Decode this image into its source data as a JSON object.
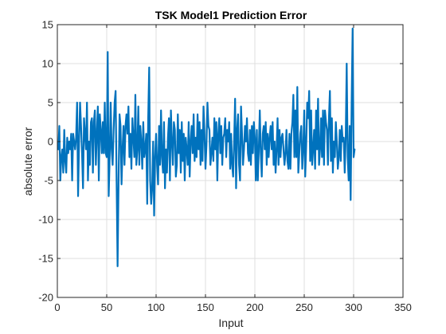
{
  "chart_data": {
    "type": "line",
    "title": "TSK Model1 Prediction Error",
    "xlabel": "Input",
    "ylabel": "absolute error",
    "xlim": [
      0,
      350
    ],
    "ylim": [
      -20,
      15
    ],
    "xticks": [
      0,
      50,
      100,
      150,
      200,
      250,
      300,
      350
    ],
    "yticks": [
      -20,
      -15,
      -10,
      -5,
      0,
      5,
      10,
      15
    ],
    "xtick_labels": [
      "0",
      "50",
      "100",
      "150",
      "200",
      "250",
      "300",
      "350"
    ],
    "ytick_labels": [
      "-20",
      "-15",
      "-10",
      "-5",
      "0",
      "5",
      "10",
      "15"
    ],
    "grid": true,
    "box": true,
    "line_color": "#0072BD",
    "series": [
      {
        "values": [
          -1.0,
          2.0,
          -5.0,
          -2.0,
          -1.0,
          -4.0,
          1.5,
          -2.5,
          -4.0,
          0.5,
          -1.5,
          0.0,
          -1.0,
          1.0,
          -5.0,
          1.0,
          0.0,
          -1.0,
          0.5,
          5.0,
          -7.0,
          0.0,
          5.0,
          2.0,
          -1.5,
          -6.0,
          3.0,
          1.0,
          -1.0,
          5.0,
          -5.0,
          0.0,
          -3.0,
          2.5,
          3.0,
          -4.0,
          2.5,
          4.0,
          -3.0,
          1.0,
          4.5,
          -5.0,
          3.5,
          1.5,
          -1.5,
          2.5,
          -1.5,
          5.0,
          -1.5,
          -2.0,
          11.5,
          -7.0,
          -2.0,
          5.0,
          -1.0,
          -3.0,
          1.5,
          5.0,
          6.5,
          -5.0,
          -16.0,
          -5.0,
          3.5,
          2.0,
          -5.5,
          -1.0,
          2.0,
          -3.0,
          2.0,
          3.5,
          1.0,
          4.5,
          -2.0,
          1.0,
          -3.5,
          3.0,
          0.5,
          -2.0,
          6.0,
          -3.0,
          -1.0,
          4.5,
          -3.0,
          2.0,
          0.0,
          -3.5,
          2.5,
          -2.0,
          -1.0,
          1.0,
          -8.0,
          3.0,
          9.5,
          -5.0,
          -8.0,
          -6.0,
          0.0,
          -9.5,
          -2.0,
          1.0,
          -3.0,
          -5.5,
          2.0,
          -3.0,
          4.0,
          -2.0,
          -4.0,
          2.5,
          -6.0,
          -1.0,
          -4.0,
          0.5,
          3.0,
          -5.0,
          4.0,
          0.0,
          -3.0,
          2.5,
          1.5,
          -4.5,
          -3.0,
          3.5,
          -1.5,
          1.5,
          -4.0,
          2.5,
          -2.5,
          1.0,
          -5.0,
          0.5,
          -1.0,
          -3.0,
          2.5,
          -4.5,
          0.0,
          2.0,
          -1.5,
          3.5,
          -2.5,
          0.5,
          -2.0,
          3.5,
          -1.0,
          2.5,
          -3.0,
          1.5,
          -2.5,
          4.5,
          1.0,
          -3.5,
          -0.5,
          5.0,
          2.0,
          1.5,
          -3.0,
          -1.5,
          0.5,
          -2.5,
          3.0,
          -1.0,
          2.5,
          -5.0,
          1.0,
          3.0,
          -1.5,
          2.0,
          -3.0,
          0.5,
          1.0,
          3.0,
          -2.0,
          1.5,
          0.0,
          2.5,
          -3.5,
          1.0,
          -3.0,
          -4.5,
          0.0,
          5.5,
          -6.0,
          1.5,
          3.5,
          -3.0,
          -5.0,
          4.5,
          1.0,
          -3.0,
          -1.0,
          2.0,
          0.0,
          3.0,
          -1.5,
          -2.5,
          1.5,
          -3.0,
          2.0,
          -1.5,
          2.5,
          0.5,
          -5.0,
          1.5,
          -5.0,
          -1.0,
          4.0,
          -1.5,
          -4.5,
          1.0,
          2.0,
          -1.0,
          2.5,
          -3.0,
          1.0,
          -2.0,
          0.5,
          2.0,
          -1.0,
          2.5,
          -3.0,
          0.0,
          -4.0,
          -1.0,
          3.0,
          -3.0,
          1.5,
          -2.0,
          0.5,
          1.0,
          -1.0,
          -3.0,
          -1.5,
          1.5,
          -2.5,
          -3.5,
          1.0,
          -3.5,
          1.0,
          2.5,
          6.0,
          -2.0,
          4.0,
          -2.0,
          7.0,
          -4.0,
          -1.5,
          1.0,
          2.0,
          -3.5,
          -1.0,
          4.0,
          -4.5,
          -0.5,
          5.0,
          3.0,
          6.5,
          -2.5,
          4.0,
          -3.0,
          -1.0,
          1.5,
          -3.5,
          4.0,
          -1.0,
          5.5,
          -3.0,
          -1.0,
          3.0,
          -2.0,
          4.0,
          -3.0,
          4.0,
          2.5,
          1.5,
          -3.0,
          3.0,
          6.5,
          -2.5,
          3.0,
          -4.0,
          0.0,
          -2.0,
          2.5,
          0.0,
          -3.5,
          -2.0,
          1.5,
          -2.5,
          2.0,
          0.0,
          0.5,
          -4.0,
          0.5,
          10.0,
          -2.0,
          -5.0,
          2.0,
          -7.5,
          5.0,
          14.5,
          -2.0,
          -1.0
        ]
      }
    ]
  }
}
